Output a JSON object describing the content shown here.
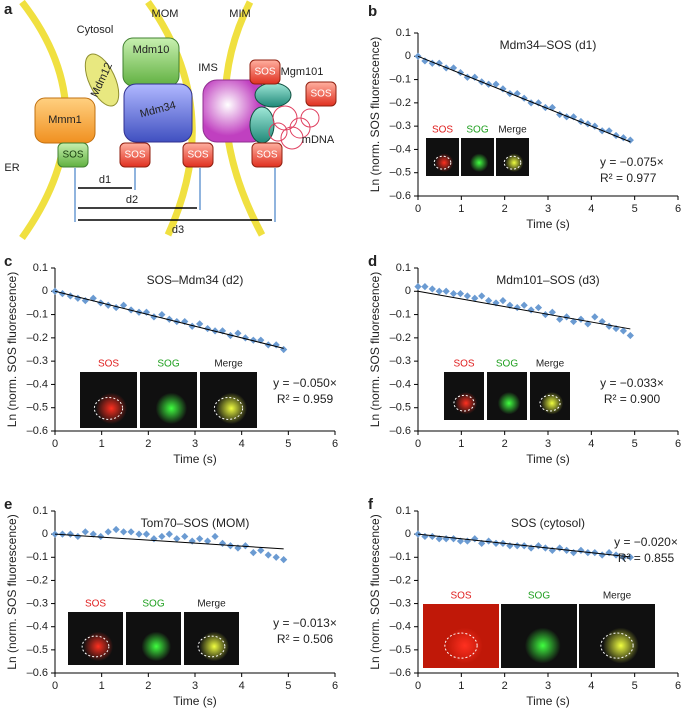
{
  "diagram": {
    "panel": "a",
    "labels": [
      "Cytosol",
      "MOM",
      "MIM",
      "IMS",
      "Mdm12",
      "Mdm10",
      "Mmm1",
      "Mdm34",
      "SOS",
      "SOS",
      "SOS",
      "SOS",
      "SOS",
      "SOS",
      "Mgm101",
      "mDNA",
      "ER",
      "d1",
      "d2",
      "d3"
    ]
  },
  "chart_data": [
    {
      "type": "scatter",
      "panel": "b",
      "title": "Mdm34–SOS (d1)",
      "x_label": "Time (s)",
      "y_label": "Ln (norm. SOS fluorescence)",
      "xlim": [
        0,
        6
      ],
      "xticks": [
        0,
        1,
        2,
        3,
        4,
        5,
        6
      ],
      "ylim": [
        -0.6,
        0.1
      ],
      "yticks": [
        0.1,
        0,
        {
          "value": -0.1,
          "label": "–0.1"
        },
        {
          "value": -0.2,
          "label": "–0.2"
        },
        {
          "value": -0.3,
          "label": "–0.3"
        },
        {
          "value": -0.4,
          "label": "–0.4"
        },
        {
          "value": -0.5,
          "label": "–0.5"
        },
        {
          "value": -0.6,
          "label": "–0.6"
        }
      ],
      "color": "#6b9bd2",
      "x": [
        0,
        0.16,
        0.33,
        0.49,
        0.65,
        0.82,
        0.98,
        1.14,
        1.31,
        1.47,
        1.63,
        1.8,
        1.96,
        2.12,
        2.29,
        2.45,
        2.61,
        2.78,
        2.94,
        3.1,
        3.27,
        3.43,
        3.59,
        3.76,
        3.92,
        4.08,
        4.25,
        4.41,
        4.57,
        4.74,
        4.9
      ],
      "y": [
        0,
        -0.02,
        -0.03,
        -0.03,
        -0.05,
        -0.05,
        -0.07,
        -0.09,
        -0.09,
        -0.11,
        -0.12,
        -0.12,
        -0.14,
        -0.16,
        -0.16,
        -0.18,
        -0.2,
        -0.2,
        -0.22,
        -0.22,
        -0.25,
        -0.26,
        -0.26,
        -0.28,
        -0.29,
        -0.3,
        -0.32,
        -0.32,
        -0.34,
        -0.35,
        -0.36
      ],
      "fit": {
        "value": -0.075,
        "label": "y = −0.075×"
      },
      "r_squared": {
        "value": 0.977,
        "label": "R² = 0.977"
      },
      "inset_labels": [
        "SOS",
        "SOG",
        "Merge"
      ]
    },
    {
      "type": "scatter",
      "panel": "c",
      "title": "SOS–Mdm34 (d2)",
      "x_label": "Time (s)",
      "y_label": "Ln (norm. SOS fluorescence)",
      "xlim": [
        0,
        6
      ],
      "xticks": [
        0,
        1,
        2,
        3,
        4,
        5,
        6
      ],
      "ylim": [
        -0.6,
        0.1
      ],
      "yticks": [
        0.1,
        0,
        {
          "value": -0.1,
          "label": "–0.1"
        },
        {
          "value": -0.2,
          "label": "–0.2"
        },
        {
          "value": -0.3,
          "label": "–0.3"
        },
        {
          "value": -0.4,
          "label": "–0.4"
        },
        {
          "value": -0.5,
          "label": "–0.5"
        },
        {
          "value": -0.6,
          "label": "–0.6"
        }
      ],
      "color": "#6b9bd2",
      "x": [
        0,
        0.16,
        0.33,
        0.49,
        0.65,
        0.82,
        0.98,
        1.14,
        1.31,
        1.47,
        1.63,
        1.8,
        1.96,
        2.12,
        2.29,
        2.45,
        2.61,
        2.78,
        2.94,
        3.1,
        3.27,
        3.43,
        3.59,
        3.76,
        3.92,
        4.08,
        4.25,
        4.41,
        4.57,
        4.74,
        4.9
      ],
      "y": [
        0,
        -0.01,
        -0.02,
        -0.03,
        -0.04,
        -0.03,
        -0.05,
        -0.06,
        -0.07,
        -0.06,
        -0.08,
        -0.09,
        -0.09,
        -0.11,
        -0.1,
        -0.12,
        -0.13,
        -0.13,
        -0.15,
        -0.14,
        -0.16,
        -0.17,
        -0.17,
        -0.19,
        -0.18,
        -0.2,
        -0.21,
        -0.21,
        -0.23,
        -0.23,
        -0.25
      ],
      "fit": {
        "value": -0.05,
        "label": "y = −0.050×"
      },
      "r_squared": {
        "value": 0.959,
        "label": "R² = 0.959"
      },
      "inset_labels": [
        "SOS",
        "SOG",
        "Merge"
      ]
    },
    {
      "type": "scatter",
      "panel": "d",
      "title": "Mdm101–SOS (d3)",
      "x_label": "Time (s)",
      "y_label": "Ln (norm. SOS fluorescence)",
      "xlim": [
        0,
        6
      ],
      "xticks": [
        0,
        1,
        2,
        3,
        4,
        5,
        6
      ],
      "ylim": [
        -0.6,
        0.1
      ],
      "yticks": [
        0.1,
        0,
        {
          "value": -0.1,
          "label": "–0.1"
        },
        {
          "value": -0.2,
          "label": "–0.2"
        },
        {
          "value": -0.3,
          "label": "–0.3"
        },
        {
          "value": -0.4,
          "label": "–0.4"
        },
        {
          "value": -0.5,
          "label": "–0.5"
        },
        {
          "value": -0.6,
          "label": "–0.6"
        }
      ],
      "color": "#6b9bd2",
      "x": [
        0,
        0.16,
        0.33,
        0.49,
        0.65,
        0.82,
        0.98,
        1.14,
        1.31,
        1.47,
        1.63,
        1.8,
        1.96,
        2.12,
        2.29,
        2.45,
        2.61,
        2.78,
        2.94,
        3.1,
        3.27,
        3.43,
        3.59,
        3.76,
        3.92,
        4.08,
        4.25,
        4.41,
        4.57,
        4.74,
        4.9
      ],
      "y": [
        0.02,
        0.02,
        0.01,
        0,
        0,
        -0.01,
        -0.01,
        -0.02,
        -0.03,
        -0.02,
        -0.04,
        -0.05,
        -0.04,
        -0.06,
        -0.07,
        -0.06,
        -0.08,
        -0.07,
        -0.1,
        -0.09,
        -0.12,
        -0.11,
        -0.13,
        -0.12,
        -0.14,
        -0.11,
        -0.13,
        -0.15,
        -0.16,
        -0.17,
        -0.19
      ],
      "fit": {
        "value": -0.033,
        "label": "y = −0.033×"
      },
      "r_squared": {
        "value": 0.9,
        "label": "R² = 0.900"
      },
      "inset_labels": [
        "SOS",
        "SOG",
        "Merge"
      ]
    },
    {
      "type": "scatter",
      "panel": "e",
      "title": "Tom70–SOS (MOM)",
      "x_label": "Time (s)",
      "y_label": "Ln (norm. SOS fluorescence)",
      "xlim": [
        0,
        6
      ],
      "xticks": [
        0,
        1,
        2,
        3,
        4,
        5,
        6
      ],
      "ylim": [
        -0.6,
        0.1
      ],
      "yticks": [
        0.1,
        0,
        {
          "value": -0.1,
          "label": "–0.1"
        },
        {
          "value": -0.2,
          "label": "–0.2"
        },
        {
          "value": -0.3,
          "label": "–0.3"
        },
        {
          "value": -0.4,
          "label": "–0.4"
        },
        {
          "value": -0.5,
          "label": "–0.5"
        },
        {
          "value": -0.6,
          "label": "–0.6"
        }
      ],
      "color": "#6b9bd2",
      "x": [
        0,
        0.16,
        0.33,
        0.49,
        0.65,
        0.82,
        0.98,
        1.14,
        1.31,
        1.47,
        1.63,
        1.8,
        1.96,
        2.12,
        2.29,
        2.45,
        2.61,
        2.78,
        2.94,
        3.1,
        3.27,
        3.43,
        3.59,
        3.76,
        3.92,
        4.08,
        4.25,
        4.41,
        4.57,
        4.74,
        4.9
      ],
      "y": [
        0,
        0,
        0,
        -0.01,
        0.01,
        0,
        -0.01,
        0.01,
        0.02,
        0.01,
        0.01,
        0,
        0,
        -0.02,
        -0.01,
        0,
        -0.02,
        -0.01,
        -0.03,
        -0.02,
        -0.03,
        -0.01,
        -0.04,
        -0.05,
        -0.06,
        -0.05,
        -0.08,
        -0.07,
        -0.09,
        -0.1,
        -0.11
      ],
      "fit": {
        "value": -0.013,
        "label": "y = −0.013×"
      },
      "r_squared": {
        "value": 0.506,
        "label": "R² = 0.506"
      },
      "inset_labels": [
        "SOS",
        "SOG",
        "Merge"
      ]
    },
    {
      "type": "scatter",
      "panel": "f",
      "title": "SOS (cytosol)",
      "x_label": "Time (s)",
      "y_label": "Ln (norm. SOS fluorescence)",
      "xlim": [
        0,
        6
      ],
      "xticks": [
        0,
        1,
        2,
        3,
        4,
        5,
        6
      ],
      "ylim": [
        -0.6,
        0.1
      ],
      "yticks": [
        0.1,
        0,
        {
          "value": -0.1,
          "label": "–0.1"
        },
        {
          "value": -0.2,
          "label": "–0.2"
        },
        {
          "value": -0.3,
          "label": "–0.3"
        },
        {
          "value": -0.4,
          "label": "–0.4"
        },
        {
          "value": -0.5,
          "label": "–0.5"
        },
        {
          "value": -0.6,
          "label": "–0.6"
        }
      ],
      "color": "#6b9bd2",
      "x": [
        0,
        0.16,
        0.33,
        0.49,
        0.65,
        0.82,
        0.98,
        1.14,
        1.31,
        1.47,
        1.63,
        1.8,
        1.96,
        2.12,
        2.29,
        2.45,
        2.61,
        2.78,
        2.94,
        3.1,
        3.27,
        3.43,
        3.59,
        3.76,
        3.92,
        4.08,
        4.25,
        4.41,
        4.57,
        4.74,
        4.9
      ],
      "y": [
        0,
        -0.01,
        -0.01,
        -0.02,
        -0.02,
        -0.02,
        -0.03,
        -0.03,
        -0.02,
        -0.04,
        -0.03,
        -0.04,
        -0.04,
        -0.05,
        -0.05,
        -0.05,
        -0.06,
        -0.05,
        -0.06,
        -0.07,
        -0.06,
        -0.07,
        -0.08,
        -0.07,
        -0.08,
        -0.08,
        -0.09,
        -0.08,
        -0.09,
        -0.1,
        -0.1
      ],
      "fit": {
        "value": -0.02,
        "label": "y = −0.020×"
      },
      "r_squared": {
        "value": 0.855,
        "label": "R² = 0.855"
      },
      "inset_labels": [
        "SOS",
        "SOG",
        "Merge"
      ]
    }
  ]
}
